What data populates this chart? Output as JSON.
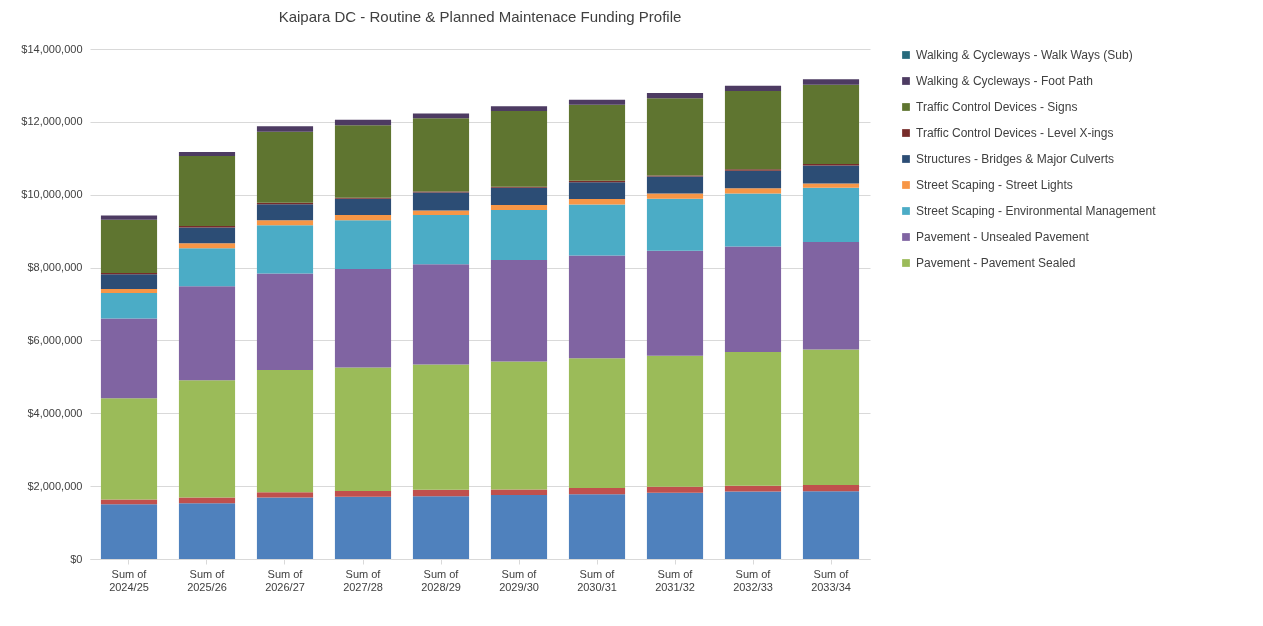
{
  "chart_data": {
    "type": "bar",
    "stacked": true,
    "title": "Kaipara DC - Routine & Planned Maintenace Funding Profile",
    "categories": [
      "Sum of 2024/25",
      "Sum of 2025/26",
      "Sum of 2026/27",
      "Sum of 2027/28",
      "Sum of 2028/29",
      "Sum of 2029/30",
      "Sum of 2030/31",
      "Sum of 2031/32",
      "Sum of 2032/33",
      "Sum of 2033/34"
    ],
    "series": [
      {
        "color": "#4f81bd",
        "values": [
          1500000,
          1530000,
          1690000,
          1710000,
          1720000,
          1760000,
          1780000,
          1820000,
          1850000,
          1860000
        ]
      },
      {
        "color": "#c0504d",
        "values": [
          130000,
          160000,
          140000,
          160000,
          180000,
          150000,
          170000,
          160000,
          160000,
          170000
        ]
      },
      {
        "name": "Pavement - Pavement Sealed",
        "color": "#9bbb59",
        "values": [
          2780000,
          3220000,
          3360000,
          3390000,
          3440000,
          3510000,
          3560000,
          3600000,
          3670000,
          3720000
        ]
      },
      {
        "name": "Pavement - Unsealed Pavement",
        "color": "#8064a2",
        "values": [
          2190000,
          2580000,
          2650000,
          2700000,
          2750000,
          2790000,
          2820000,
          2880000,
          2900000,
          2950000
        ]
      },
      {
        "name": "Street Scaping - Environmental Management",
        "color": "#4bacc6",
        "values": [
          700000,
          1040000,
          1320000,
          1340000,
          1350000,
          1370000,
          1400000,
          1430000,
          1450000,
          1490000
        ]
      },
      {
        "name": "Street Scaping - Street Lights",
        "color": "#f79646",
        "values": [
          110000,
          140000,
          140000,
          140000,
          130000,
          140000,
          150000,
          140000,
          150000,
          120000
        ]
      },
      {
        "name": "Structures - Bridges & Major Culverts",
        "color": "#2c4d75",
        "values": [
          410000,
          430000,
          440000,
          450000,
          490000,
          470000,
          460000,
          470000,
          480000,
          490000
        ]
      },
      {
        "name": "Traffic Control Devices - Level X-ings",
        "color": "#772c2a",
        "values": [
          30000,
          40000,
          40000,
          30000,
          30000,
          30000,
          40000,
          30000,
          40000,
          40000
        ]
      },
      {
        "name": "Traffic Control Devices - Signs",
        "color": "#5f7530",
        "values": [
          1460000,
          1920000,
          1950000,
          1990000,
          2010000,
          2080000,
          2090000,
          2120000,
          2150000,
          2180000
        ]
      },
      {
        "name": "Walking & Cycleways - Foot Path",
        "color": "#4d3b62",
        "values": [
          120000,
          110000,
          150000,
          150000,
          130000,
          130000,
          140000,
          140000,
          140000,
          150000
        ]
      },
      {
        "name": "Walking & Cycleways - Walk Ways (Sub)",
        "color": "#276a7c",
        "values": [
          0,
          0,
          0,
          0,
          0,
          0,
          0,
          0,
          0,
          0
        ]
      }
    ],
    "ylim": [
      0,
      14000000
    ],
    "yticks": [
      {
        "value": 0,
        "label": "$0"
      },
      {
        "value": 2000000,
        "label": "$2,000,000"
      },
      {
        "value": 4000000,
        "label": "$4,000,000"
      },
      {
        "value": 6000000,
        "label": "$6,000,000"
      },
      {
        "value": 8000000,
        "label": "$8,000,000"
      },
      {
        "value": 10000000,
        "label": "$10,000,000"
      },
      {
        "value": 12000000,
        "label": "$12,000,000"
      },
      {
        "value": 14000000,
        "label": "$14,000,000"
      }
    ],
    "grid": "y",
    "legend": "right"
  }
}
